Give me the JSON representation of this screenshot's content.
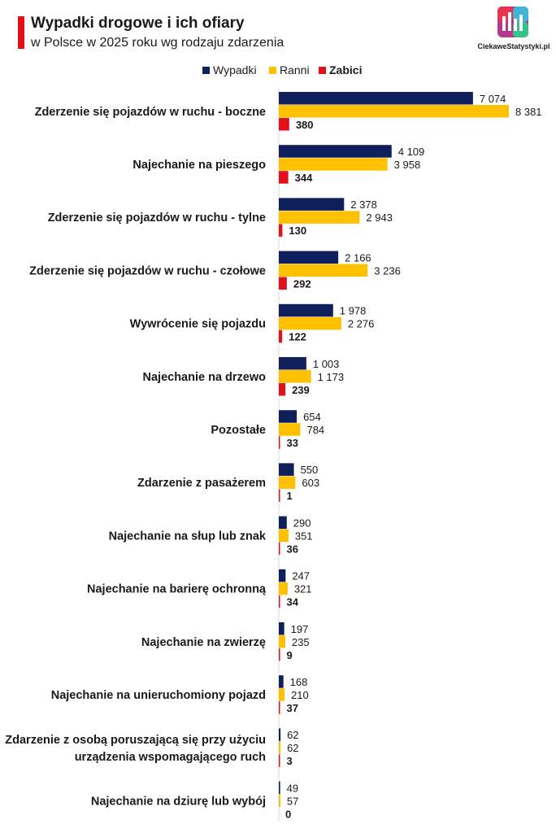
{
  "header": {
    "title": "Wypadki drogowe i ich ofiary",
    "subtitle": "w Polsce w 2025 roku wg rodzaju zdarzenia",
    "accent_color": "#e3101a"
  },
  "logo": {
    "text": "CiekaweStatystyki.pl"
  },
  "colors": {
    "Wypadki": "#0f1f5c",
    "Ranni": "#ffc000",
    "Zabici": "#e3101a"
  },
  "chart_data": {
    "type": "bar",
    "orientation": "horizontal",
    "title": "Wypadki drogowe i ich ofiary",
    "subtitle": "w Polsce w 2025 roku wg rodzaju zdarzenia",
    "legend": "top-center",
    "grid": false,
    "xlim": [
      0,
      8381
    ],
    "categories": [
      "Zderzenie się pojazdów w ruchu - boczne",
      "Najechanie na pieszego",
      "Zderzenie się pojazdów w ruchu - tylne",
      "Zderzenie się pojazdów w ruchu - czołowe",
      "Wywrócenie się pojazdu",
      "Najechanie na drzewo",
      "Pozostałe",
      "Zdarzenie z pasażerem",
      "Najechanie na słup lub znak",
      "Najechanie na barierę ochronną",
      "Najechanie na zwierzę",
      "Najechanie na unieruchomiony pojazd",
      [
        "Zdarzenie z osobą poruszającą się przy użyciu",
        "urządzenia wspomagającego ruch"
      ],
      "Najechanie na dziurę lub wybój"
    ],
    "series": [
      {
        "name": "Wypadki",
        "values": [
          7074,
          4109,
          2378,
          2166,
          1978,
          1003,
          654,
          550,
          290,
          247,
          197,
          168,
          62,
          49
        ],
        "labels": [
          "7 074",
          "4 109",
          "2 378",
          "2 166",
          "1 978",
          "1 003",
          "654",
          "550",
          "290",
          "247",
          "197",
          "168",
          "62",
          "49"
        ]
      },
      {
        "name": "Ranni",
        "values": [
          8381,
          3958,
          2943,
          3236,
          2276,
          1173,
          784,
          603,
          351,
          321,
          235,
          210,
          62,
          57
        ],
        "labels": [
          "8 381",
          "3 958",
          "2 943",
          "3 236",
          "2 276",
          "1 173",
          "784",
          "603",
          "351",
          "321",
          "235",
          "210",
          "62",
          "57"
        ]
      },
      {
        "name": "Zabici",
        "values": [
          380,
          344,
          130,
          292,
          122,
          239,
          33,
          1,
          36,
          34,
          9,
          37,
          3,
          0
        ],
        "labels": [
          "380",
          "344",
          "130",
          "292",
          "122",
          "239",
          "33",
          "1",
          "36",
          "34",
          "9",
          "37",
          "3",
          "0"
        ]
      }
    ]
  }
}
